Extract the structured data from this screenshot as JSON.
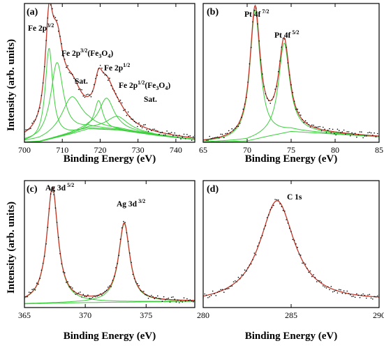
{
  "figure": {
    "y_axis_title": "Intensity (arb. units)",
    "panels_note": "four XPS panels"
  },
  "chart_data": [
    {
      "panel": "(a)",
      "type": "line",
      "xlabel": "Binding Energy (eV)",
      "xlim": [
        700,
        745
      ],
      "ylim": [
        0,
        1.02
      ],
      "x_ticks": [
        700,
        710,
        720,
        730,
        740
      ],
      "grid": false,
      "peaks": [
        {
          "label": "Fe 2p",
          "sup": "3/2",
          "sub_suffix": "",
          "center": 706.5,
          "amp": 0.67,
          "width": 1.2
        },
        {
          "label": "Fe 2p",
          "sup": "3/2",
          "sub_suffix": "(Fe3O4)",
          "center": 708.6,
          "amp": 0.55,
          "width": 2.0
        },
        {
          "label": "Sat.",
          "sup": "",
          "sub_suffix": "",
          "center": 712.5,
          "amp": 0.27,
          "width": 3.3
        },
        {
          "label": "Fe 2p",
          "sup": "1/2",
          "sub_suffix": "",
          "center": 719.6,
          "amp": 0.21,
          "width": 1.3
        },
        {
          "label": "Fe 2p",
          "sup": "1/2",
          "sub_suffix": "(Fe3O4)",
          "center": 721.7,
          "amp": 0.23,
          "width": 2.4
        },
        {
          "label": "Sat.",
          "sup": "",
          "sub_suffix": "",
          "center": 724.5,
          "amp": 0.1,
          "width": 3.5
        }
      ],
      "baseline": {
        "x": [
          700,
          704,
          712,
          717,
          725,
          735,
          745
        ],
        "y": [
          0,
          0.005,
          0.06,
          0.1,
          0.09,
          0.05,
          0.02
        ]
      },
      "series": [
        {
          "role": "envelope",
          "color": "#c0392b"
        },
        {
          "role": "components",
          "color": "#3ccf3c"
        },
        {
          "role": "raw",
          "color": "#000000"
        }
      ]
    },
    {
      "panel": "(b)",
      "type": "line",
      "xlabel": "Binding Energy (eV)",
      "xlim": [
        65,
        85
      ],
      "ylim": [
        0,
        1.02
      ],
      "x_ticks": [
        65,
        70,
        75,
        80,
        85
      ],
      "grid": false,
      "peaks": [
        {
          "label": "Pt 4f",
          "sup": "7/2",
          "center": 70.9,
          "amp": 0.95,
          "width": 0.7
        },
        {
          "label": "Pt 4f",
          "sup": "5/2",
          "center": 74.2,
          "amp": 0.66,
          "width": 0.75
        }
      ],
      "baseline": {
        "x": [
          65,
          70,
          72,
          75,
          80,
          85
        ],
        "y": [
          0,
          0.01,
          0.04,
          0.08,
          0.06,
          0.04
        ]
      },
      "series": [
        {
          "role": "envelope",
          "color": "#c0392b"
        },
        {
          "role": "components",
          "color": "#3ccf3c"
        },
        {
          "role": "raw",
          "color": "#000000"
        }
      ]
    },
    {
      "panel": "(c)",
      "type": "line",
      "xlabel": "Binding Energy (eV)",
      "xlim": [
        365,
        379
      ],
      "ylim": [
        0,
        1.02
      ],
      "x_ticks": [
        365,
        370,
        375
      ],
      "grid": false,
      "peaks": [
        {
          "label": "Ag 3d",
          "sup": "5/2",
          "center": 367.3,
          "amp": 0.93,
          "width": 0.55
        },
        {
          "label": "Ag 3d",
          "sup": "3/2",
          "center": 373.2,
          "amp": 0.63,
          "width": 0.55
        }
      ],
      "baseline": {
        "x": [
          365,
          370,
          379
        ],
        "y": [
          0.03,
          0.04,
          0.05
        ]
      },
      "series": [
        {
          "role": "envelope",
          "color": "#c0392b"
        },
        {
          "role": "components",
          "color": "#3ccf3c"
        },
        {
          "role": "raw",
          "color": "#000000"
        }
      ]
    },
    {
      "panel": "(d)",
      "type": "line",
      "xlabel": "Binding Energy (eV)",
      "xlim": [
        280,
        290
      ],
      "ylim": [
        0,
        1.02
      ],
      "x_ticks": [
        280,
        285,
        290
      ],
      "grid": false,
      "peaks": [
        {
          "label": "C 1s",
          "sup": "",
          "center": 284.2,
          "amp": 0.82,
          "width": 1.2
        }
      ],
      "baseline": {
        "x": [
          280,
          290
        ],
        "y": [
          0.03,
          0.05
        ]
      },
      "series": [
        {
          "role": "envelope",
          "color": "#c0392b"
        },
        {
          "role": "raw",
          "color": "#000000"
        }
      ]
    }
  ]
}
